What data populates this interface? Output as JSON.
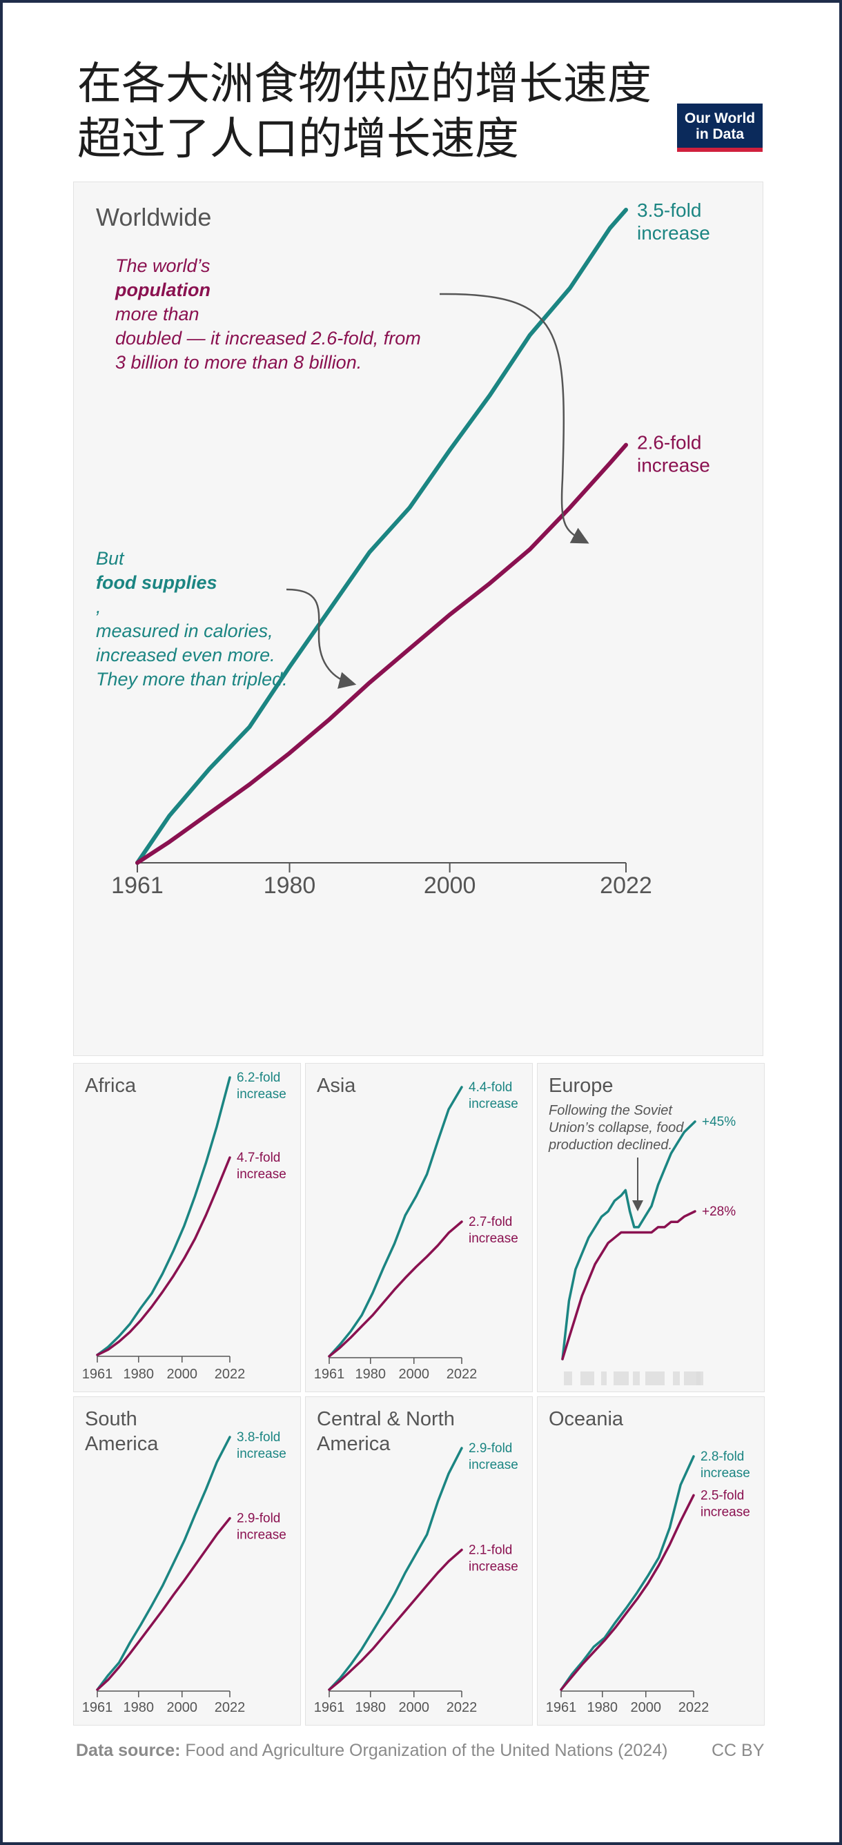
{
  "title": {
    "line1": "在各大洲食物供应的增长速度",
    "line2": "超过了人口的增长速度"
  },
  "logo": {
    "line1": "Our World",
    "line2": "in Data"
  },
  "colors": {
    "food": "#1b8582",
    "population": "#8a1150",
    "axis": "#555555",
    "panel_bg": "#f6f6f6"
  },
  "worldwide": {
    "title": "Worldwide",
    "annotation_population": {
      "line1_pre": "The world’s ",
      "line1_bold": "population",
      "line1_post": " more than",
      "line2": "doubled — it increased 2.6-fold, from",
      "line3": "3 billion to more than 8 billion."
    },
    "annotation_food": {
      "line1_pre": "But ",
      "line1_bold": "food supplies",
      "line1_post": ",",
      "line2": "measured in calories,",
      "line3": "increased even more.",
      "line4": "They more than tripled."
    }
  },
  "footer": {
    "source_label": "Data source:",
    "source_text": "Food and Agriculture Organization of the United Nations (2024)",
    "license": "CC BY"
  },
  "chart_data": [
    {
      "type": "line",
      "title": "Worldwide",
      "x": [
        1961,
        1965,
        1970,
        1975,
        1980,
        1985,
        1990,
        1995,
        2000,
        2005,
        2010,
        2015,
        2020,
        2022
      ],
      "xticks": [
        1961,
        1980,
        2000,
        2022
      ],
      "xlim": [
        1961,
        2022
      ],
      "ylim": [
        1,
        3.5
      ],
      "series": [
        {
          "name": "Food supply",
          "values": [
            1.0,
            1.18,
            1.36,
            1.52,
            1.75,
            1.97,
            2.19,
            2.36,
            2.58,
            2.79,
            3.02,
            3.2,
            3.43,
            3.5
          ],
          "label1": "3.5-fold",
          "label2": "increase"
        },
        {
          "name": "Population",
          "values": [
            1.0,
            1.08,
            1.19,
            1.3,
            1.42,
            1.55,
            1.69,
            1.82,
            1.95,
            2.07,
            2.2,
            2.36,
            2.53,
            2.6
          ],
          "label1": "2.6-fold",
          "label2": "increase"
        }
      ]
    },
    {
      "type": "line",
      "title": "Africa",
      "x": [
        1961,
        1966,
        1971,
        1976,
        1981,
        1986,
        1991,
        1996,
        2001,
        2006,
        2011,
        2016,
        2022
      ],
      "xticks": [
        1961,
        1980,
        2000,
        2022
      ],
      "xlim": [
        1961,
        2022
      ],
      "ylim": [
        1,
        6.2
      ],
      "series": [
        {
          "name": "Food supply",
          "values": [
            1.0,
            1.15,
            1.35,
            1.58,
            1.88,
            2.15,
            2.52,
            2.95,
            3.42,
            3.98,
            4.6,
            5.28,
            6.2
          ],
          "label1": "6.2-fold",
          "label2": "increase"
        },
        {
          "name": "Population",
          "values": [
            1.0,
            1.1,
            1.25,
            1.43,
            1.65,
            1.9,
            2.18,
            2.48,
            2.81,
            3.18,
            3.62,
            4.1,
            4.7
          ],
          "label1": "4.7-fold",
          "label2": "increase"
        }
      ]
    },
    {
      "type": "line",
      "title": "Asia",
      "x": [
        1961,
        1966,
        1971,
        1976,
        1981,
        1986,
        1991,
        1996,
        2001,
        2006,
        2011,
        2016,
        2022
      ],
      "xticks": [
        1961,
        1980,
        2000,
        2022
      ],
      "xlim": [
        1961,
        2022
      ],
      "ylim": [
        1,
        4.4
      ],
      "series": [
        {
          "name": "Food supply",
          "values": [
            1.0,
            1.15,
            1.32,
            1.52,
            1.8,
            2.12,
            2.42,
            2.78,
            3.02,
            3.3,
            3.72,
            4.12,
            4.4
          ],
          "label1": "4.4-fold",
          "label2": "increase"
        },
        {
          "name": "Population",
          "values": [
            1.0,
            1.11,
            1.24,
            1.38,
            1.52,
            1.68,
            1.84,
            1.99,
            2.13,
            2.26,
            2.4,
            2.56,
            2.7
          ],
          "label1": "2.7-fold",
          "label2": "increase"
        }
      ]
    },
    {
      "type": "line",
      "title": "Europe",
      "annotation": {
        "line1": "Following the Soviet",
        "line2": "Union’s collapse, food",
        "line3": "production declined."
      },
      "x": [
        1961,
        1964,
        1967,
        1970,
        1973,
        1976,
        1979,
        1982,
        1985,
        1988,
        1990,
        1992,
        1994,
        1996,
        1999,
        2002,
        2005,
        2008,
        2011,
        2014,
        2017,
        2022
      ],
      "xticks": [
        1961,
        1980,
        2000,
        2022
      ],
      "xlim": [
        1961,
        2022
      ],
      "ylim": [
        1,
        1.45
      ],
      "series": [
        {
          "name": "Food supply",
          "values": [
            1.0,
            1.11,
            1.17,
            1.2,
            1.23,
            1.25,
            1.27,
            1.28,
            1.3,
            1.31,
            1.32,
            1.28,
            1.25,
            1.25,
            1.27,
            1.29,
            1.33,
            1.36,
            1.39,
            1.41,
            1.43,
            1.45
          ],
          "label1": "+45%",
          "label2": ""
        },
        {
          "name": "Population",
          "values": [
            1.0,
            1.04,
            1.08,
            1.12,
            1.15,
            1.18,
            1.2,
            1.22,
            1.23,
            1.24,
            1.24,
            1.24,
            1.24,
            1.24,
            1.24,
            1.24,
            1.25,
            1.25,
            1.26,
            1.26,
            1.27,
            1.28
          ],
          "label1": "+28%",
          "label2": ""
        }
      ]
    },
    {
      "type": "line",
      "title": "South America",
      "title_line1": "South",
      "title_line2": "America",
      "x": [
        1961,
        1966,
        1971,
        1976,
        1981,
        1986,
        1991,
        1996,
        2001,
        2006,
        2011,
        2016,
        2022
      ],
      "xticks": [
        1961,
        1980,
        2000,
        2022
      ],
      "xlim": [
        1961,
        2022
      ],
      "ylim": [
        1,
        3.8
      ],
      "series": [
        {
          "name": "Food supply",
          "values": [
            1.0,
            1.16,
            1.3,
            1.52,
            1.72,
            1.93,
            2.15,
            2.4,
            2.65,
            2.94,
            3.22,
            3.52,
            3.8
          ],
          "label1": "3.8-fold",
          "label2": "increase"
        },
        {
          "name": "Population",
          "values": [
            1.0,
            1.11,
            1.25,
            1.4,
            1.56,
            1.72,
            1.88,
            2.05,
            2.21,
            2.38,
            2.55,
            2.72,
            2.9
          ],
          "label1": "2.9-fold",
          "label2": "increase"
        }
      ]
    },
    {
      "type": "line",
      "title": "Central & North America",
      "title_line1": "Central & North",
      "title_line2": "America",
      "x": [
        1961,
        1966,
        1971,
        1976,
        1981,
        1986,
        1991,
        1996,
        2001,
        2006,
        2011,
        2016,
        2022
      ],
      "xticks": [
        1961,
        1980,
        2000,
        2022
      ],
      "xlim": [
        1961,
        2022
      ],
      "ylim": [
        1,
        2.9
      ],
      "series": [
        {
          "name": "Food supply",
          "values": [
            1.0,
            1.09,
            1.2,
            1.32,
            1.46,
            1.6,
            1.75,
            1.92,
            2.07,
            2.22,
            2.48,
            2.7,
            2.9
          ],
          "label1": "2.9-fold",
          "label2": "increase"
        },
        {
          "name": "Population",
          "values": [
            1.0,
            1.07,
            1.15,
            1.23,
            1.32,
            1.42,
            1.52,
            1.62,
            1.72,
            1.82,
            1.92,
            2.01,
            2.1
          ],
          "label1": "2.1-fold",
          "label2": "increase"
        }
      ]
    },
    {
      "type": "line",
      "title": "Oceania",
      "x": [
        1961,
        1966,
        1971,
        1976,
        1981,
        1986,
        1991,
        1996,
        2001,
        2006,
        2011,
        2016,
        2022
      ],
      "xticks": [
        1961,
        1980,
        2000,
        2022
      ],
      "xlim": [
        1961,
        2022
      ],
      "ylim": [
        1,
        2.8
      ],
      "series": [
        {
          "name": "Food supply",
          "values": [
            1.0,
            1.12,
            1.22,
            1.33,
            1.4,
            1.52,
            1.63,
            1.75,
            1.88,
            2.02,
            2.25,
            2.58,
            2.8
          ],
          "label1": "2.8-fold",
          "label2": "increase"
        },
        {
          "name": "Population",
          "values": [
            1.0,
            1.1,
            1.2,
            1.29,
            1.38,
            1.48,
            1.59,
            1.7,
            1.82,
            1.96,
            2.12,
            2.3,
            2.5
          ],
          "label1": "2.5-fold",
          "label2": "increase"
        }
      ]
    }
  ]
}
